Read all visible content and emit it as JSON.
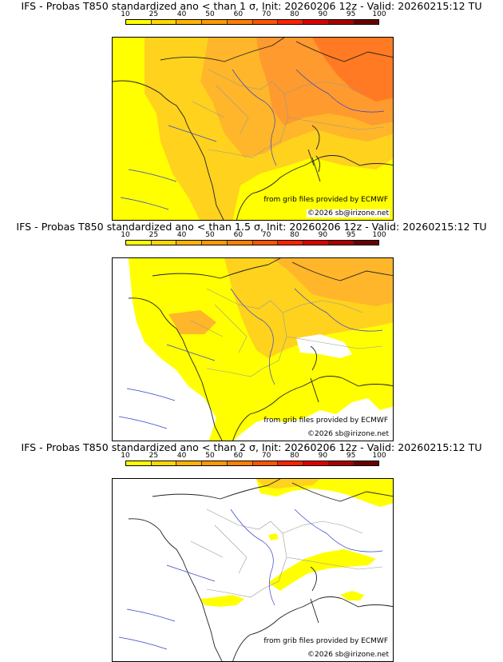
{
  "panels": [
    {
      "title": "IFS - Probas T850  standardized ano < than 1 σ, Init: 20260206 12z - Valid: 20260215:12 TU",
      "credit_source": "from grib files provided by ECMWF",
      "credit_copyright": "©2026 sb@irizone.net",
      "threshold": "1 σ"
    },
    {
      "title": "IFS - Probas T850  standardized ano < than 1.5 σ, Init: 20260206 12z - Valid: 20260215:12 TU",
      "credit_source": "from grib files provided by ECMWF",
      "credit_copyright": "©2026 sb@irizone.net",
      "threshold": "1.5 σ"
    },
    {
      "title": "IFS - Probas T850  standardized ano < than 2 σ, Init: 20260206 12z - Valid: 20260215:12 TU",
      "credit_source": "from grib files provided by ECMWF",
      "credit_copyright": "©2026 sb@irizone.net",
      "threshold": "2 σ"
    }
  ],
  "colorbar": {
    "ticks": [
      "10",
      "25",
      "40",
      "50",
      "60",
      "70",
      "80",
      "90",
      "95",
      "100"
    ],
    "colors": [
      "#ffff00",
      "#ffd700",
      "#ffb300",
      "#ff9900",
      "#ff7f00",
      "#ff5500",
      "#ff2200",
      "#dd0000",
      "#aa0000",
      "#6b0000"
    ]
  },
  "map_colors": {
    "yellow": "#ffff00",
    "gold": "#ffd21e",
    "orange_light": "#ffb62a",
    "orange": "#ff9a2e",
    "orange_dark": "#ff7a22",
    "coast": "#222222",
    "borders": "#999999",
    "rivers": "#3344cc"
  }
}
